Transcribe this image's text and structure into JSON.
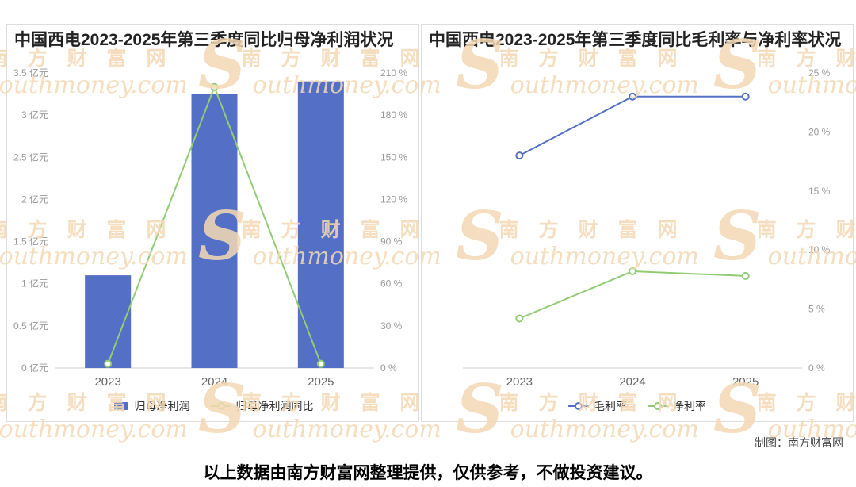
{
  "watermark": {
    "s": "S",
    "cn": "南 方 财 富 网",
    "en": "outhmoney.com"
  },
  "footer": {
    "credit": "制图：南方财富网",
    "disclaimer": "以上数据由南方财富网整理提供，仅供参考，不做投资建议。"
  },
  "chart_data": [
    {
      "type": "bar",
      "title": "中国西电2023-2025年第三季度同比归母净利润状况",
      "categories": [
        "2023",
        "2024",
        "2025"
      ],
      "series": [
        {
          "name": "归母净利润",
          "type": "bar",
          "axis": "left",
          "color": "#5470c6",
          "values": [
            1.1,
            3.25,
            3.4
          ]
        },
        {
          "name": "归母净利润同比",
          "type": "line",
          "axis": "right",
          "color": "#91cc75",
          "values": [
            3,
            200,
            3
          ]
        }
      ],
      "axes": [
        {
          "id": "left",
          "side": "left",
          "min": 0,
          "max": 3.5,
          "step": 0.5,
          "suffix": " 亿元"
        },
        {
          "id": "right",
          "side": "right",
          "min": 0,
          "max": 210,
          "step": 30,
          "suffix": " %"
        }
      ],
      "legend_position": "bottom",
      "grid": false
    },
    {
      "type": "line",
      "title": "中国西电2023-2025年第三季度同比毛利率与净利率状况",
      "categories": [
        "2023",
        "2024",
        "2025"
      ],
      "series": [
        {
          "name": "毛利率",
          "type": "line",
          "axis": "right",
          "color": "#5470c6",
          "values": [
            18,
            23,
            23
          ]
        },
        {
          "name": "净利率",
          "type": "line",
          "axis": "right",
          "color": "#91cc75",
          "values": [
            4.2,
            8.2,
            7.8
          ]
        }
      ],
      "axes": [
        {
          "id": "right",
          "side": "right",
          "min": 0,
          "max": 25,
          "step": 5,
          "suffix": " %"
        }
      ],
      "legend_position": "bottom",
      "grid": false
    }
  ]
}
